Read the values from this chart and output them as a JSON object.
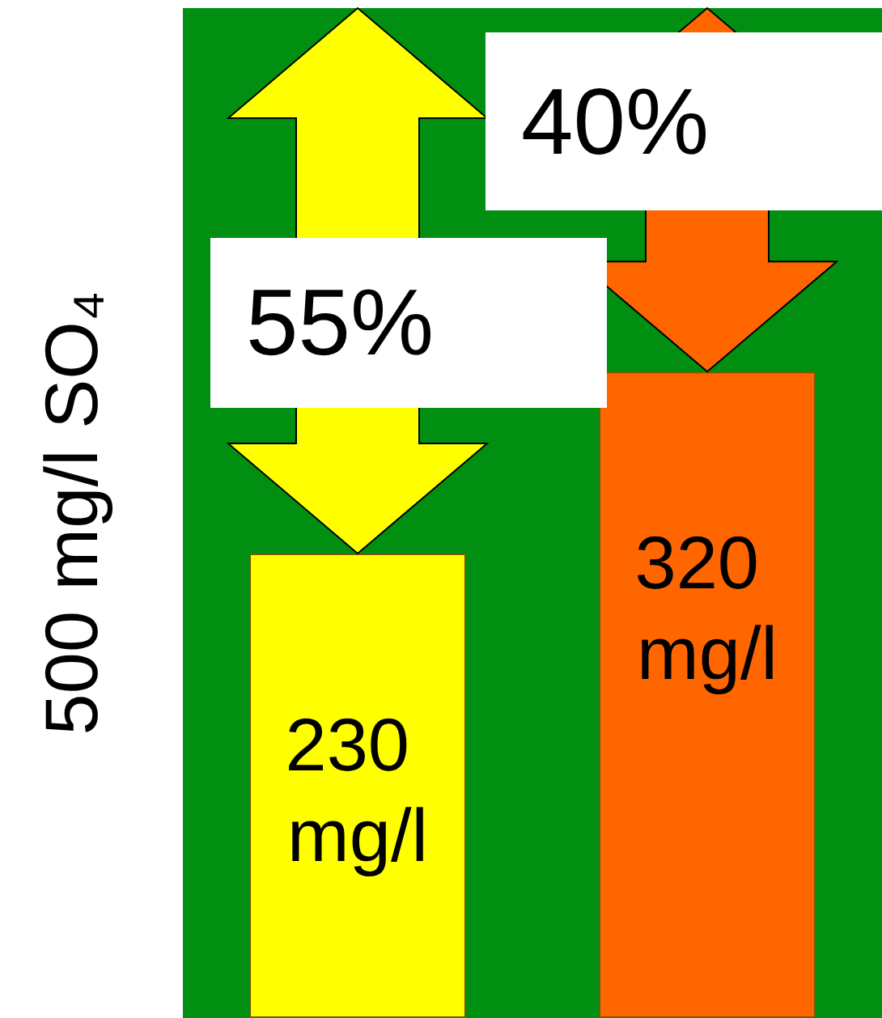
{
  "chart_data": {
    "type": "bar",
    "ylabel": "500 mg/l SO₄",
    "categories": [
      null,
      null
    ],
    "values": [
      230,
      320
    ],
    "colors": [
      "#ffff00",
      "#ff6600"
    ],
    "value_labels": [
      "230 mg/l",
      "320 mg/l"
    ],
    "ylim": [
      0,
      500
    ],
    "bands": [
      {
        "axis": "y",
        "from": 0,
        "to": 500,
        "color": "#008f11"
      }
    ],
    "annotations": [
      "55%",
      "40%"
    ],
    "tick_labels": false,
    "grid": false
  }
}
